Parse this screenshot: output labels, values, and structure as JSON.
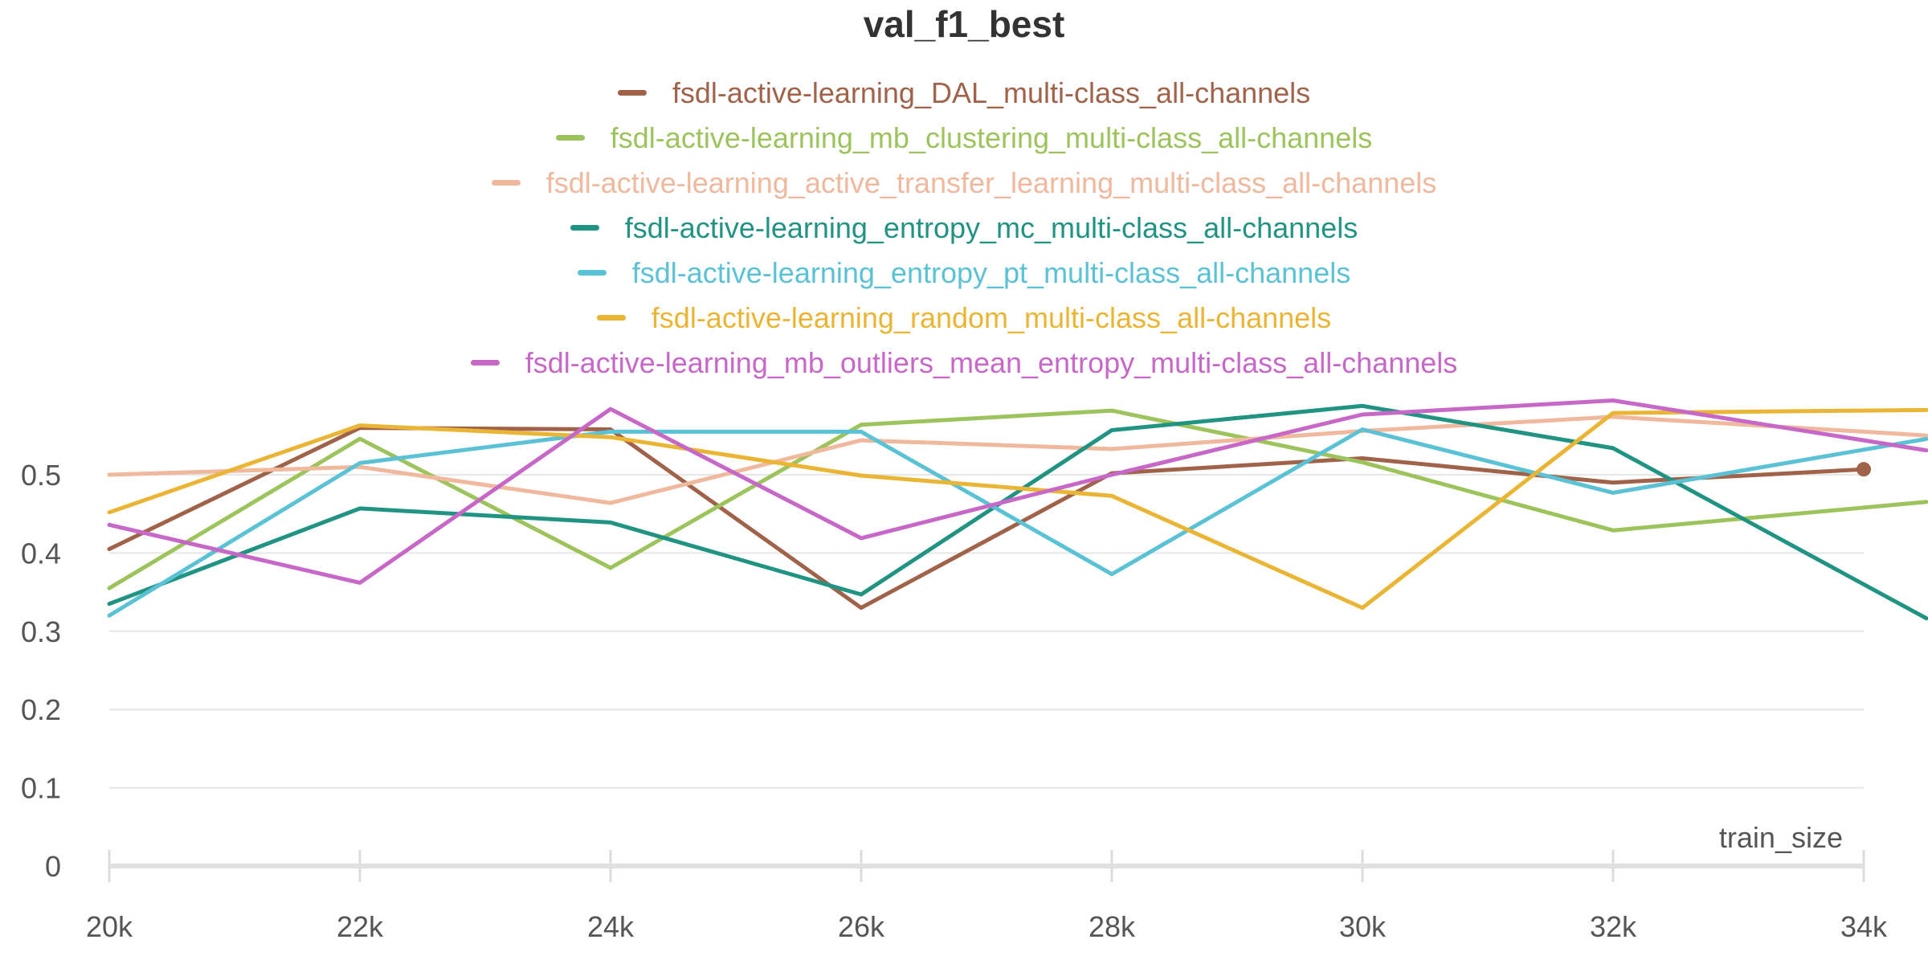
{
  "chart_data": {
    "type": "line",
    "title": "val_f1_best",
    "xlabel": "train_size",
    "ylabel": "",
    "x": [
      20000,
      22000,
      24000,
      26000,
      28000,
      30000,
      32000,
      34000
    ],
    "x_tick_labels": [
      "20k",
      "22k",
      "24k",
      "26k",
      "28k",
      "30k",
      "32k",
      "34k"
    ],
    "y_ticks": [
      0,
      0.1,
      0.2,
      0.3,
      0.4,
      0.5
    ],
    "y_tick_labels": [
      "0",
      "0.1",
      "0.2",
      "0.3",
      "0.4",
      "0.5"
    ],
    "xlim": [
      20000,
      34000
    ],
    "ylim": [
      0,
      0.6
    ],
    "grid": true,
    "legend_placement": "top-center",
    "series": [
      {
        "name": "fsdl-active-learning_DAL_multi-class_all-channels",
        "color": "#a0634a",
        "values": [
          0.405,
          0.56,
          0.558,
          0.33,
          0.502,
          0.521,
          0.49,
          0.507
        ],
        "end_marker": true
      },
      {
        "name": "fsdl-active-learning_mb_clustering_multi-class_all-channels",
        "color": "#9dc35c",
        "values": [
          0.355,
          0.546,
          0.381,
          0.564,
          0.582,
          0.516,
          0.429,
          0.458
        ]
      },
      {
        "name": "fsdl-active-learning_active_transfer_learning_multi-class_all-channels",
        "color": "#f0b89c",
        "values": [
          0.5,
          0.51,
          0.464,
          0.544,
          0.533,
          0.556,
          0.574,
          0.555
        ]
      },
      {
        "name": "fsdl-active-learning_entropy_mc_multi-class_all-channels",
        "color": "#219383",
        "values": [
          0.335,
          0.457,
          0.439,
          0.347,
          0.557,
          0.588,
          0.534,
          0.36
        ]
      },
      {
        "name": "fsdl-active-learning_entropy_pt_multi-class_all-channels",
        "color": "#5bc2d6",
        "values": [
          0.32,
          0.515,
          0.555,
          0.555,
          0.373,
          0.558,
          0.477,
          0.532
        ]
      },
      {
        "name": "fsdl-active-learning_random_multi-class_all-channels",
        "color": "#eab535",
        "values": [
          0.452,
          0.563,
          0.548,
          0.499,
          0.473,
          0.33,
          0.579,
          0.582
        ]
      },
      {
        "name": "fsdl-active-learning_mb_outliers_mean_entropy_multi-class_all-channels",
        "color": "#c767c7",
        "values": [
          0.436,
          0.362,
          0.584,
          0.419,
          0.5,
          0.577,
          0.595,
          0.544
        ]
      }
    ]
  }
}
